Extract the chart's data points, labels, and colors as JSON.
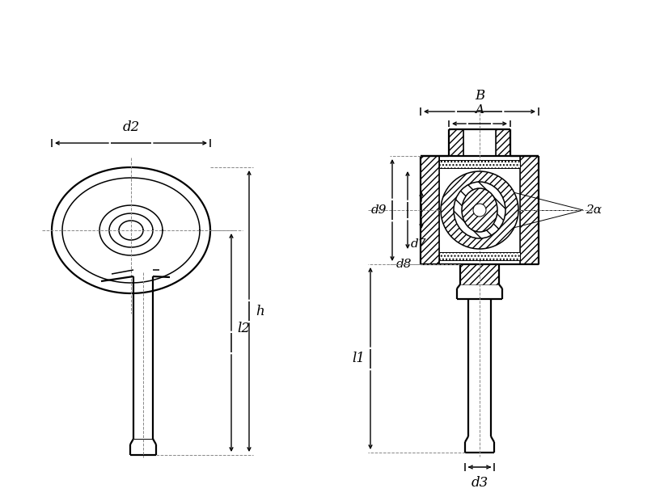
{
  "bg_color": "#ffffff",
  "lc": "#000000",
  "dash_color": "#888888",
  "figsize": [
    8.0,
    6.15
  ],
  "dpi": 100,
  "labels": {
    "d2": "d2",
    "h": "h",
    "l2": "l2",
    "d9": "d9",
    "B": "B",
    "A": "A",
    "d8": "d8",
    "d7": "d7",
    "l1": "l1",
    "d3": "d3",
    "two_alpha": "2α"
  }
}
